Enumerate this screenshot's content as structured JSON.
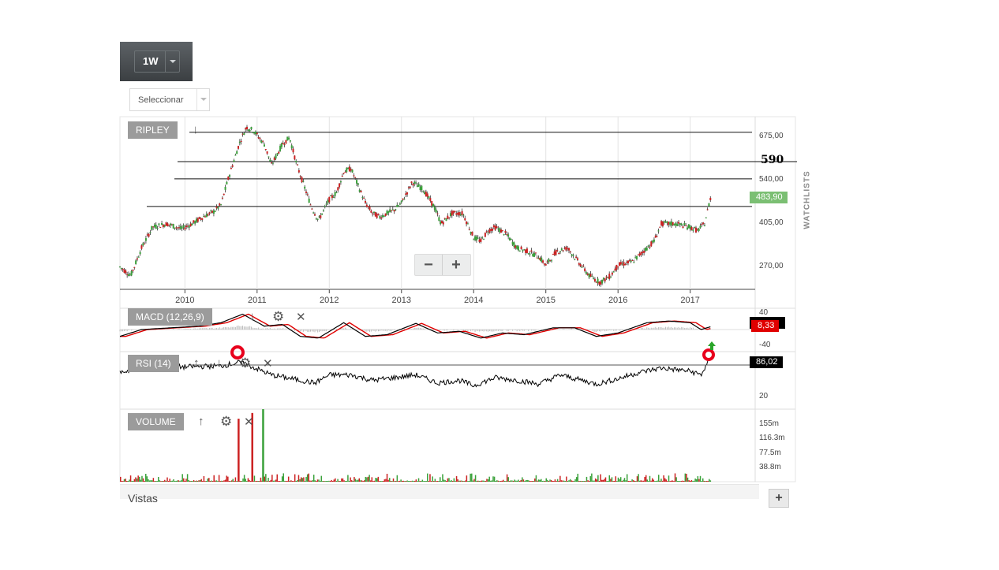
{
  "timeframe": {
    "label": "1W"
  },
  "selector": {
    "label": "Seleccionar"
  },
  "main_panel": {
    "title": "RIPLEY",
    "y_ticks": [
      "675,00",
      "540,00",
      "405,00",
      "270,00"
    ],
    "x_ticks": [
      "2010",
      "2011",
      "2012",
      "2013",
      "2014",
      "2015",
      "2016",
      "2017"
    ],
    "last_price": "483,90",
    "annotation": "590"
  },
  "macd_panel": {
    "title": "MACD (12,26,9)",
    "y_ticks": [
      "40",
      "-40"
    ],
    "value": "8,33"
  },
  "rsi_panel": {
    "title": "RSI (14)",
    "y_ticks": [
      "20"
    ],
    "value": "86,02"
  },
  "volume_panel": {
    "title": "VOLUME",
    "y_ticks": [
      "155m",
      "116.3m",
      "77.5m",
      "38.8m"
    ]
  },
  "watchlists_label": "WATCHLISTS",
  "footer": {
    "views_label": "Vistas",
    "add_label": "+"
  },
  "zoom": {
    "minus": "−",
    "plus": "+"
  },
  "colors": {
    "up": "#3aa13a",
    "down": "#cc2222",
    "macd_signal": "#e00000",
    "price_tag": "#7bbf73",
    "marker": "#e8001c"
  },
  "chart_data": {
    "type": "line",
    "x_range": [
      2009.1,
      2017.9
    ],
    "ylim": [
      220,
      720
    ],
    "price_path": [
      [
        2009.1,
        285
      ],
      [
        2009.25,
        260
      ],
      [
        2009.4,
        340
      ],
      [
        2009.55,
        400
      ],
      [
        2009.75,
        410
      ],
      [
        2009.95,
        395
      ],
      [
        2010.1,
        410
      ],
      [
        2010.25,
        430
      ],
      [
        2010.4,
        445
      ],
      [
        2010.5,
        465
      ],
      [
        2010.6,
        540
      ],
      [
        2010.75,
        640
      ],
      [
        2010.85,
        690
      ],
      [
        2010.95,
        680
      ],
      [
        2011.1,
        640
      ],
      [
        2011.2,
        580
      ],
      [
        2011.35,
        640
      ],
      [
        2011.45,
        660
      ],
      [
        2011.55,
        580
      ],
      [
        2011.65,
        520
      ],
      [
        2011.75,
        460
      ],
      [
        2011.85,
        420
      ],
      [
        2012.0,
        480
      ],
      [
        2012.1,
        500
      ],
      [
        2012.2,
        560
      ],
      [
        2012.3,
        570
      ],
      [
        2012.4,
        520
      ],
      [
        2012.5,
        470
      ],
      [
        2012.6,
        440
      ],
      [
        2012.7,
        430
      ],
      [
        2012.8,
        440
      ],
      [
        2012.9,
        450
      ],
      [
        2013.0,
        470
      ],
      [
        2013.15,
        530
      ],
      [
        2013.3,
        510
      ],
      [
        2013.45,
        460
      ],
      [
        2013.55,
        410
      ],
      [
        2013.7,
        440
      ],
      [
        2013.85,
        440
      ],
      [
        2014.0,
        370
      ],
      [
        2014.1,
        360
      ],
      [
        2014.2,
        390
      ],
      [
        2014.3,
        400
      ],
      [
        2014.45,
        380
      ],
      [
        2014.6,
        340
      ],
      [
        2014.75,
        330
      ],
      [
        2014.9,
        315
      ],
      [
        2015.0,
        290
      ],
      [
        2015.15,
        330
      ],
      [
        2015.3,
        340
      ],
      [
        2015.45,
        300
      ],
      [
        2015.6,
        260
      ],
      [
        2015.75,
        240
      ],
      [
        2015.9,
        260
      ],
      [
        2016.0,
        290
      ],
      [
        2016.2,
        300
      ],
      [
        2016.35,
        330
      ],
      [
        2016.5,
        360
      ],
      [
        2016.6,
        410
      ],
      [
        2016.8,
        410
      ],
      [
        2017.0,
        400
      ],
      [
        2017.1,
        390
      ],
      [
        2017.2,
        410
      ],
      [
        2017.28,
        484
      ]
    ],
    "horizontal_levels": [
      675,
      590,
      540,
      460
    ],
    "macd_range": [
      -60,
      60
    ],
    "macd_path": [
      [
        2009.1,
        -20
      ],
      [
        2009.4,
        0
      ],
      [
        2009.8,
        5
      ],
      [
        2010.2,
        10
      ],
      [
        2010.5,
        20
      ],
      [
        2010.8,
        45
      ],
      [
        2011.1,
        10
      ],
      [
        2011.35,
        15
      ],
      [
        2011.6,
        -20
      ],
      [
        2011.85,
        -25
      ],
      [
        2012.2,
        20
      ],
      [
        2012.5,
        -20
      ],
      [
        2012.8,
        -15
      ],
      [
        2013.2,
        18
      ],
      [
        2013.5,
        -10
      ],
      [
        2013.8,
        -5
      ],
      [
        2014.1,
        -25
      ],
      [
        2014.4,
        -10
      ],
      [
        2014.7,
        -15
      ],
      [
        2015.1,
        5
      ],
      [
        2015.4,
        5
      ],
      [
        2015.7,
        -20
      ],
      [
        2016.0,
        -10
      ],
      [
        2016.4,
        20
      ],
      [
        2016.7,
        25
      ],
      [
        2017.0,
        20
      ],
      [
        2017.15,
        0
      ],
      [
        2017.28,
        8
      ]
    ],
    "rsi_range": [
      0,
      100
    ],
    "rsi_path": [
      [
        2009.1,
        60
      ],
      [
        2009.5,
        70
      ],
      [
        2010.0,
        70
      ],
      [
        2010.5,
        72
      ],
      [
        2010.75,
        78
      ],
      [
        2010.9,
        72
      ],
      [
        2011.2,
        55
      ],
      [
        2011.4,
        50
      ],
      [
        2011.6,
        45
      ],
      [
        2011.8,
        40
      ],
      [
        2012.0,
        55
      ],
      [
        2012.3,
        55
      ],
      [
        2012.6,
        45
      ],
      [
        2012.9,
        50
      ],
      [
        2013.2,
        55
      ],
      [
        2013.5,
        40
      ],
      [
        2013.8,
        45
      ],
      [
        2014.0,
        35
      ],
      [
        2014.3,
        50
      ],
      [
        2014.6,
        45
      ],
      [
        2014.9,
        38
      ],
      [
        2015.2,
        55
      ],
      [
        2015.5,
        45
      ],
      [
        2015.7,
        38
      ],
      [
        2016.0,
        48
      ],
      [
        2016.3,
        60
      ],
      [
        2016.6,
        68
      ],
      [
        2017.0,
        62
      ],
      [
        2017.15,
        55
      ],
      [
        2017.28,
        86
      ]
    ],
    "volume_spikes_m": [
      [
        2010.73,
        165
      ],
      [
        2010.92,
        180
      ],
      [
        2011.07,
        190
      ]
    ],
    "volume_max_m": 190
  }
}
